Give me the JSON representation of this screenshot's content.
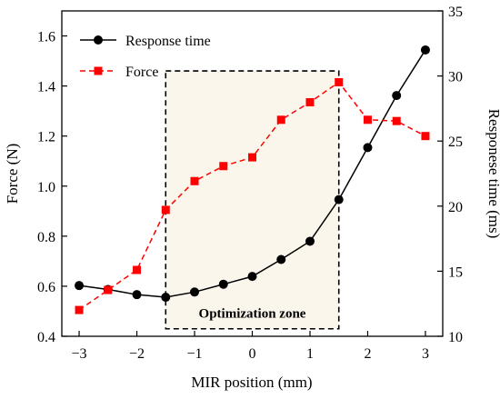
{
  "chart_data": {
    "type": "line",
    "xlabel": "MIR position (mm)",
    "ylabel_left": "Force (N)",
    "ylabel_right": "Responese time (ms)",
    "xlim": [
      -3.3,
      3.3
    ],
    "ylim_left": [
      0.4,
      1.7
    ],
    "ylim_right": [
      10,
      35
    ],
    "x_ticks": [
      -3,
      -2,
      -1,
      0,
      1,
      2,
      3
    ],
    "x_tick_labels": [
      "−3",
      "−2",
      "−1",
      "0",
      "1",
      "2",
      "3"
    ],
    "y_left_ticks": [
      0.4,
      0.6,
      0.8,
      1.0,
      1.2,
      1.4,
      1.6
    ],
    "y_left_tick_labels": [
      "0.4",
      "0.6",
      "0.8",
      "1.0",
      "1.2",
      "1.4",
      "1.6"
    ],
    "y_right_ticks": [
      10,
      15,
      20,
      25,
      30,
      35
    ],
    "y_right_tick_labels": [
      "10",
      "15",
      "20",
      "25",
      "30",
      "35"
    ],
    "grid": false,
    "legend_position": "top-left",
    "x": [
      -3,
      -2.5,
      -2,
      -1.5,
      -1,
      -0.5,
      0,
      0.5,
      1,
      1.5,
      2,
      2.5,
      3
    ],
    "series": [
      {
        "name": "Response time",
        "axis": "right",
        "color": "#000000",
        "marker": "circle",
        "line_style": "solid",
        "values": [
          13.9,
          13.6,
          13.2,
          13.0,
          13.4,
          14.0,
          14.6,
          15.9,
          17.3,
          20.5,
          24.5,
          28.5,
          32.0
        ]
      },
      {
        "name": "Force",
        "axis": "left",
        "color": "#ff0000",
        "marker": "square",
        "line_style": "dashed",
        "values": [
          0.505,
          0.585,
          0.665,
          0.905,
          1.02,
          1.08,
          1.115,
          1.265,
          1.335,
          1.415,
          1.265,
          1.26,
          1.2
        ]
      }
    ],
    "annotations": [
      {
        "label": "Optimization zone",
        "x_range": [
          -1.5,
          1.5
        ],
        "y_range_left": [
          0.43,
          1.46
        ],
        "fill": "#faf6ec",
        "border": "dashed"
      }
    ]
  }
}
